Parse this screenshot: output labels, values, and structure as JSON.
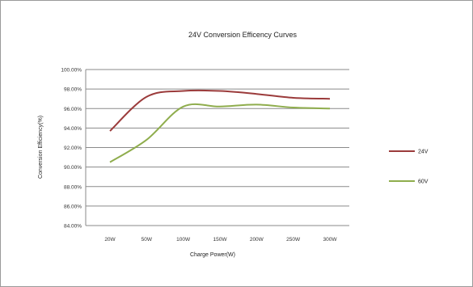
{
  "chart_data": {
    "type": "line",
    "title": "24V Conversion Efficency Curves",
    "xlabel": "Charge Power(W)",
    "ylabel": "Conversion Efficiency(%)",
    "categories": [
      "20W",
      "50W",
      "100W",
      "150W",
      "200W",
      "250W",
      "300W"
    ],
    "y_tick_labels": [
      "84.00%",
      "86.00%",
      "88.00%",
      "90.00%",
      "92.00%",
      "94.00%",
      "96.00%",
      "98.00%",
      "100.00%"
    ],
    "ylim": [
      84,
      100
    ],
    "grid": true,
    "legend_position": "right",
    "series": [
      {
        "name": "24V",
        "color": "#9b3b3b",
        "values": [
          93.7,
          97.2,
          97.8,
          97.8,
          97.5,
          97.1,
          97.0
        ]
      },
      {
        "name": "60V",
        "color": "#8fad4d",
        "values": [
          90.5,
          92.8,
          96.2,
          96.2,
          96.4,
          96.1,
          96.0
        ]
      }
    ]
  }
}
